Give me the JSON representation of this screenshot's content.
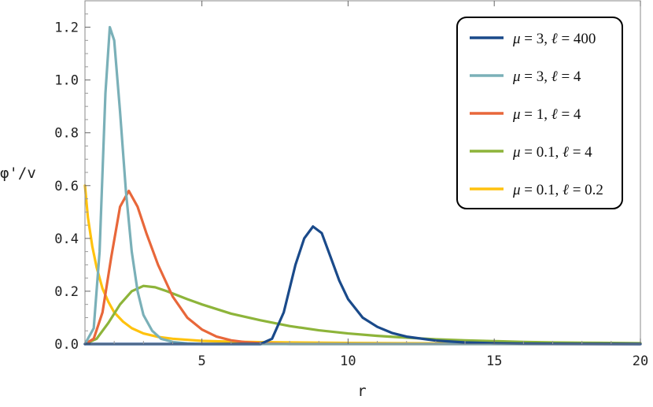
{
  "chart_data": {
    "type": "line",
    "xlabel": "r",
    "ylabel": "φ'/v",
    "xlim": [
      1,
      20
    ],
    "ylim": [
      0,
      1.3
    ],
    "xticks": [
      5,
      10,
      15,
      20
    ],
    "yticks": [
      0.0,
      0.2,
      0.4,
      0.6,
      0.8,
      1.0,
      1.2
    ],
    "xtick_labels": [
      "5",
      "10",
      "15",
      "20"
    ],
    "ytick_labels": [
      "0.0",
      "0.2",
      "0.4",
      "0.6",
      "0.8",
      "1.0",
      "1.2"
    ],
    "grid": false,
    "legend_position": "top-right",
    "series": [
      {
        "name": "μ = 3, ℓ = 400",
        "mu": "3",
        "ell": "400",
        "color": "#1a4a8a",
        "x": [
          1.0,
          7.0,
          7.4,
          7.8,
          8.2,
          8.5,
          8.8,
          9.1,
          9.4,
          9.7,
          10.0,
          10.5,
          11.0,
          11.5,
          12.0,
          13.0,
          14.0,
          15.0,
          16.0,
          18.0,
          20.0
        ],
        "y": [
          0.0,
          0.0,
          0.02,
          0.12,
          0.3,
          0.4,
          0.445,
          0.42,
          0.33,
          0.24,
          0.17,
          0.1,
          0.065,
          0.042,
          0.028,
          0.013,
          0.006,
          0.003,
          0.0015,
          0.0005,
          0.0
        ]
      },
      {
        "name": "μ = 3, ℓ = 4",
        "mu": "3",
        "ell": "4",
        "color": "#7ab0b8",
        "x": [
          1.0,
          1.3,
          1.5,
          1.7,
          1.85,
          2.0,
          2.2,
          2.4,
          2.6,
          2.8,
          3.0,
          3.3,
          3.6,
          4.0,
          4.5,
          5.0,
          20.0
        ],
        "y": [
          0.0,
          0.06,
          0.35,
          0.95,
          1.2,
          1.15,
          0.88,
          0.58,
          0.35,
          0.2,
          0.11,
          0.05,
          0.02,
          0.008,
          0.002,
          0.0,
          0.0
        ]
      },
      {
        "name": "μ = 1, ℓ = 4",
        "mu": "1",
        "ell": "4",
        "color": "#e8673a",
        "x": [
          1.0,
          1.3,
          1.6,
          1.9,
          2.2,
          2.5,
          2.8,
          3.1,
          3.5,
          4.0,
          4.5,
          5.0,
          5.5,
          6.0,
          6.5,
          7.0,
          8.0,
          20.0
        ],
        "y": [
          0.0,
          0.02,
          0.12,
          0.33,
          0.52,
          0.58,
          0.52,
          0.42,
          0.3,
          0.18,
          0.1,
          0.055,
          0.028,
          0.014,
          0.007,
          0.003,
          0.0,
          0.0
        ]
      },
      {
        "name": "μ = 0.1, ℓ = 4",
        "mu": "0.1",
        "ell": "4",
        "color": "#8db43a",
        "x": [
          1.0,
          1.4,
          1.8,
          2.2,
          2.6,
          3.0,
          3.4,
          3.8,
          4.5,
          5.0,
          6.0,
          7.0,
          8.0,
          9.0,
          10.0,
          11.0,
          12.0,
          13.0,
          14.0,
          15.0,
          16.0,
          17.0,
          18.0,
          20.0
        ],
        "y": [
          0.0,
          0.02,
          0.08,
          0.15,
          0.2,
          0.22,
          0.215,
          0.2,
          0.17,
          0.15,
          0.115,
          0.09,
          0.068,
          0.052,
          0.04,
          0.031,
          0.024,
          0.018,
          0.014,
          0.011,
          0.008,
          0.006,
          0.005,
          0.003
        ]
      },
      {
        "name": "μ = 0.1, ℓ = 0.2",
        "mu": "0.1",
        "ell": "0.2",
        "color": "#ffc20e",
        "x": [
          1.0,
          1.1,
          1.25,
          1.4,
          1.6,
          1.8,
          2.0,
          2.3,
          2.6,
          3.0,
          3.5,
          4.0,
          5.0,
          6.0,
          7.0,
          8.0,
          10.0,
          12.0,
          15.0,
          20.0
        ],
        "y": [
          0.6,
          0.48,
          0.37,
          0.29,
          0.21,
          0.16,
          0.12,
          0.085,
          0.06,
          0.04,
          0.027,
          0.02,
          0.012,
          0.009,
          0.007,
          0.006,
          0.004,
          0.003,
          0.002,
          0.001
        ]
      }
    ]
  }
}
